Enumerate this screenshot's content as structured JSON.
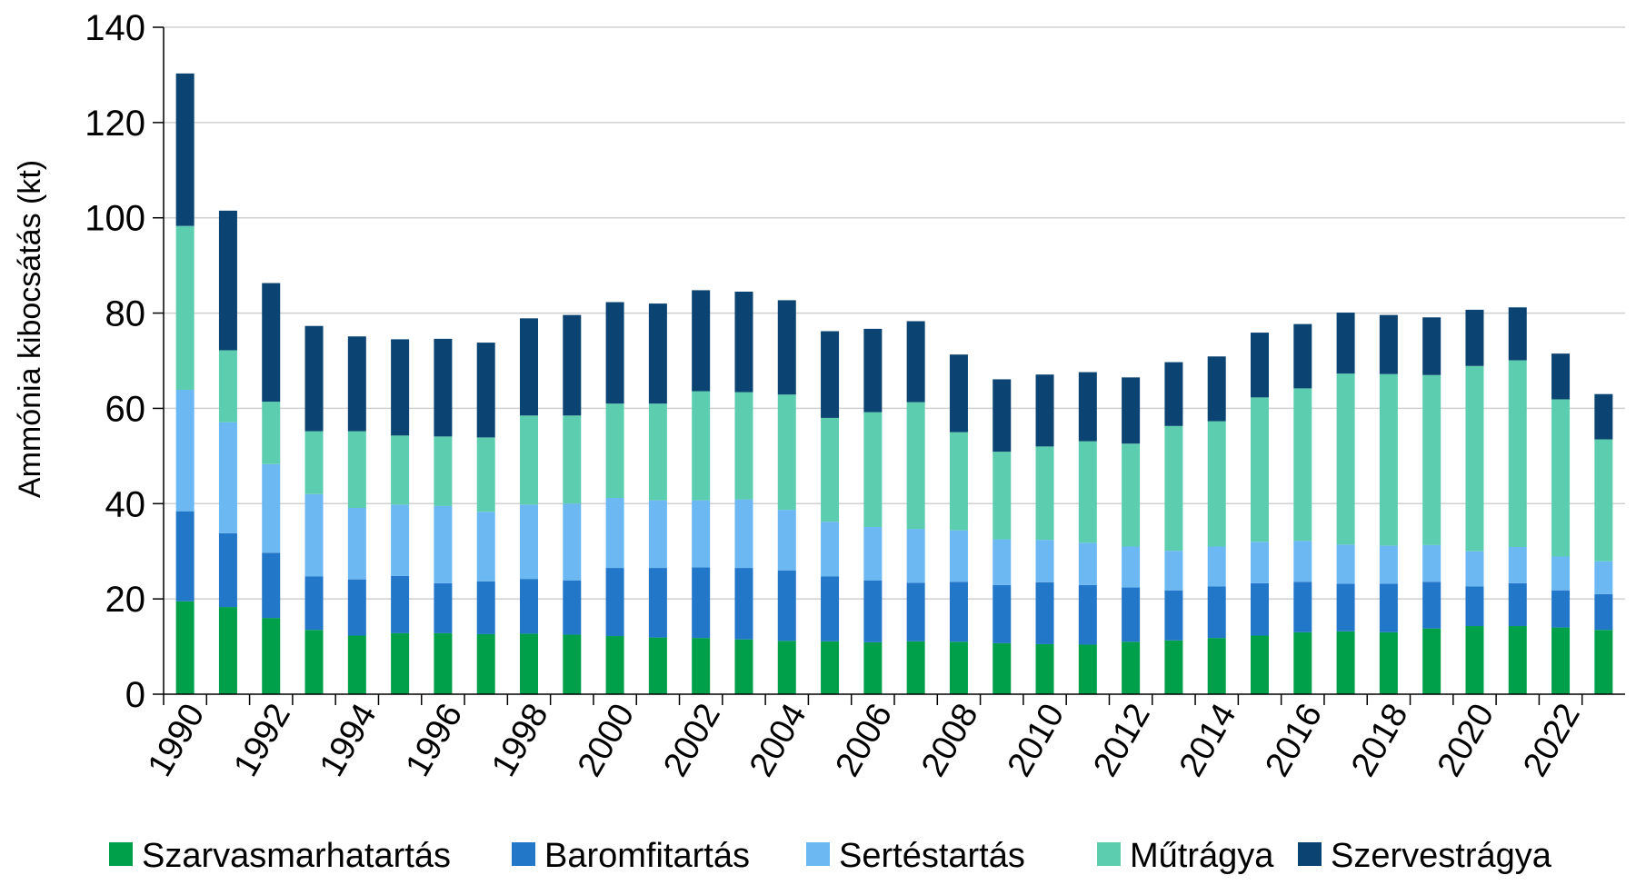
{
  "chart_data": {
    "type": "bar",
    "stacked": true,
    "title": "",
    "xlabel": "",
    "ylabel": "Ammónia kibocsátás (kt)",
    "ylim": [
      0,
      140
    ],
    "yticks": [
      0,
      20,
      40,
      60,
      80,
      100,
      120,
      140
    ],
    "grid": true,
    "legend_position": "bottom",
    "categories": [
      1990,
      1991,
      1992,
      1993,
      1994,
      1995,
      1996,
      1997,
      1998,
      1999,
      2000,
      2001,
      2002,
      2003,
      2004,
      2005,
      2006,
      2007,
      2008,
      2009,
      2010,
      2011,
      2012,
      2013,
      2014,
      2015,
      2016,
      2017,
      2018,
      2019,
      2020,
      2021,
      2022,
      2023
    ],
    "xtick_labels": [
      "1990",
      "1992",
      "1994",
      "1996",
      "1998",
      "2000",
      "2002",
      "2004",
      "2006",
      "2008",
      "2010",
      "2012",
      "2014",
      "2016",
      "2018",
      "2020",
      "2022"
    ],
    "series": [
      {
        "name": "Szarvasmarhatartás",
        "color": "#00A04A",
        "values": [
          19.5,
          18.3,
          16.0,
          13.5,
          12.3,
          12.8,
          12.8,
          12.6,
          12.7,
          12.5,
          12.2,
          11.9,
          11.8,
          11.5,
          11.2,
          11.1,
          10.9,
          11.1,
          11.0,
          10.7,
          10.5,
          10.4,
          11.0,
          11.3,
          11.8,
          12.3,
          13.0,
          13.2,
          13.0,
          13.8,
          14.3,
          14.3,
          14.0,
          13.5
        ]
      },
      {
        "name": "Baromfitartás",
        "color": "#2277C8",
        "values": [
          18.9,
          15.5,
          13.7,
          11.2,
          11.8,
          12.0,
          10.5,
          11.1,
          11.5,
          11.4,
          14.3,
          14.6,
          14.8,
          15.0,
          14.8,
          13.6,
          13.0,
          12.3,
          12.6,
          12.2,
          13.0,
          12.5,
          11.4,
          10.5,
          10.8,
          11.0,
          10.6,
          10.0,
          10.2,
          9.8,
          8.3,
          9.0,
          7.8,
          7.5
        ]
      },
      {
        "name": "Sertéstartás",
        "color": "#6BB8F2",
        "values": [
          25.5,
          23.3,
          18.6,
          17.3,
          15.0,
          15.0,
          16.2,
          14.6,
          15.6,
          16.1,
          14.7,
          14.2,
          14.1,
          14.4,
          12.7,
          11.5,
          11.2,
          11.3,
          10.8,
          9.6,
          8.9,
          8.9,
          8.6,
          8.3,
          8.4,
          8.7,
          8.6,
          8.2,
          8.0,
          7.7,
          7.4,
          7.6,
          7.1,
          6.9
        ]
      },
      {
        "name": "Műtrágya",
        "color": "#5DCDB0",
        "values": [
          34.4,
          15.1,
          13.1,
          13.2,
          16.1,
          14.5,
          14.6,
          15.6,
          18.7,
          18.5,
          19.8,
          20.3,
          22.9,
          22.5,
          24.2,
          21.8,
          24.1,
          26.6,
          20.6,
          18.4,
          19.6,
          21.3,
          21.6,
          26.2,
          26.3,
          30.3,
          32.0,
          35.9,
          36.0,
          35.7,
          38.9,
          39.2,
          33.0,
          25.6
        ]
      },
      {
        "name": "Szervestrágya",
        "color": "#0B4472",
        "values": [
          32.0,
          29.3,
          24.9,
          22.1,
          19.9,
          20.2,
          20.5,
          19.9,
          20.4,
          21.1,
          21.3,
          21.0,
          21.2,
          21.1,
          19.8,
          18.2,
          17.5,
          17.0,
          16.3,
          15.2,
          15.1,
          14.5,
          13.9,
          13.4,
          13.6,
          13.6,
          13.5,
          12.8,
          12.4,
          12.1,
          11.8,
          11.1,
          9.6,
          9.5
        ]
      }
    ]
  }
}
